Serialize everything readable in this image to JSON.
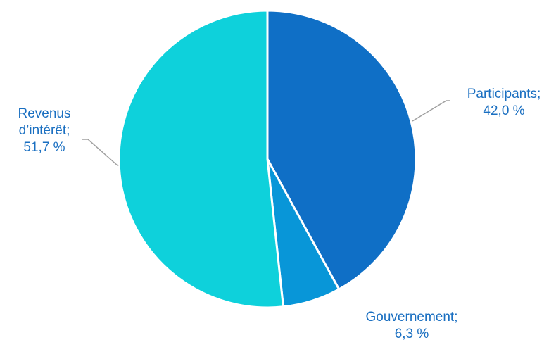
{
  "chart_data": {
    "type": "pie",
    "slices": [
      {
        "label": "Participants",
        "value": 42.0,
        "line1": "Participants;",
        "line2": "42,0 %",
        "color": "#0f6fc6"
      },
      {
        "label": "Gouvernement",
        "value": 6.3,
        "line1": "Gouvernement;",
        "line2": "6,3 %",
        "color": "#0896d8"
      },
      {
        "label": "Revenus d’intérêt",
        "value": 51.7,
        "line1": "Revenus",
        "line2": "d’intérêt;",
        "line3": "51,7 %",
        "color": "#0ed1db"
      }
    ],
    "start_angle_deg": 0,
    "direction": "clockwise",
    "label_color": "#1a6fc1",
    "leader_color": "#a0a0a0"
  }
}
